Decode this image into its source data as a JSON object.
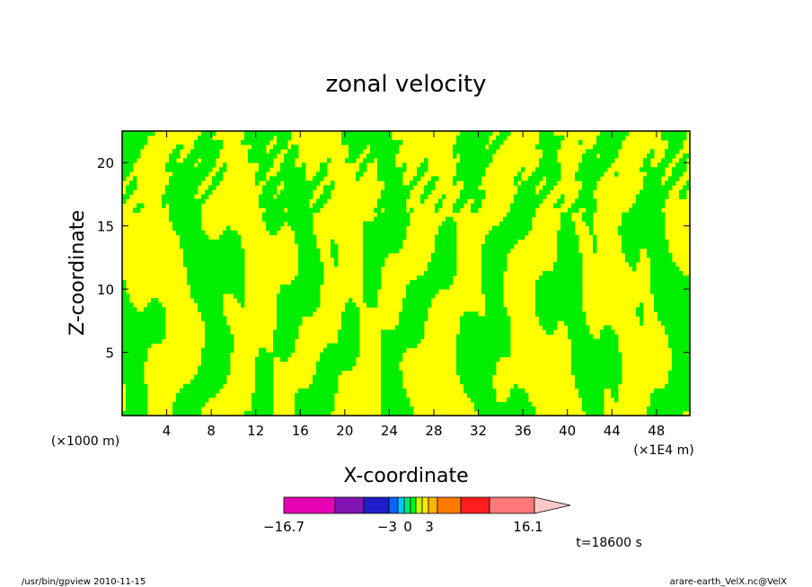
{
  "chart_data": {
    "type": "heatmap",
    "title": "zonal velocity",
    "xlabel": "X-coordinate",
    "ylabel": "Z-coordinate",
    "x_unit_left": "(×1000 m)",
    "x_unit_right": "(×1E4 m)",
    "x_ticks": [
      "4",
      "8",
      "12",
      "16",
      "20",
      "24",
      "28",
      "32",
      "36",
      "40",
      "44",
      "48"
    ],
    "y_ticks": [
      "5",
      "10",
      "15",
      "20"
    ],
    "xlim": [
      0,
      51
    ],
    "ylim": [
      0,
      22.5
    ],
    "fill_colors": {
      "positive": "#ffff00",
      "negative": "#00ee00"
    },
    "colorbar": {
      "labels": [
        "−16.7",
        "−3",
        "0",
        "3",
        "16.1"
      ],
      "min": -16.7,
      "max": 16.1,
      "colors": [
        "#e600b4",
        "#8014b4",
        "#1e1ec8",
        "#0a64ff",
        "#00c8ff",
        "#00e678",
        "#00ff00",
        "#c8ff00",
        "#ffe600",
        "#ffb400",
        "#ff7800",
        "#ff1e1e",
        "#ff7878",
        "#ffc8c8"
      ]
    },
    "time_label": "t=18600 s"
  },
  "footer": {
    "left": "/usr/bin/gpview  2010-11-15",
    "right": "arare-earth_VelX.nc@VelX"
  }
}
